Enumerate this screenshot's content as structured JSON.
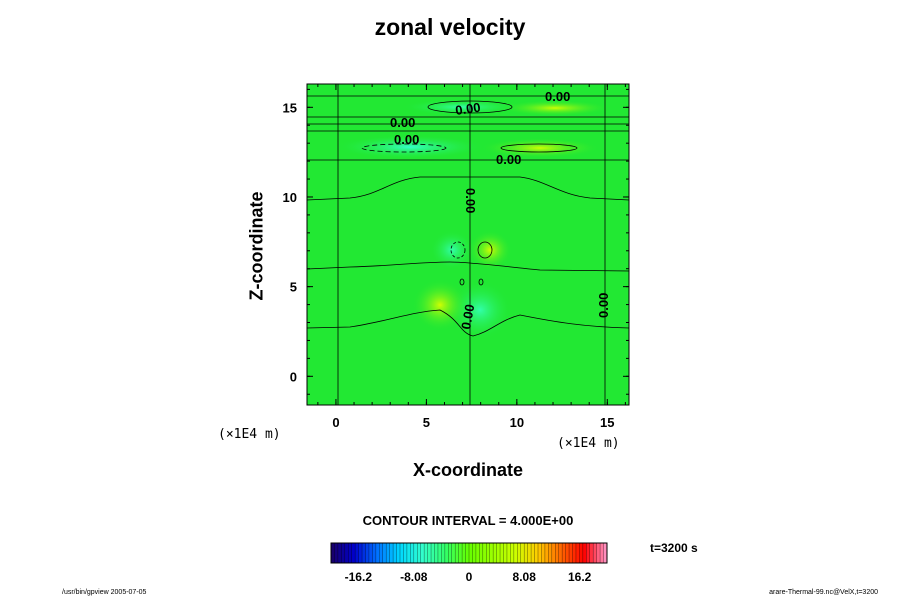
{
  "chart_data": {
    "type": "heatmap",
    "title": "zonal velocity",
    "xlabel": "X-coordinate",
    "ylabel": "Z-coordinate",
    "x_unit_label": "(×1E4 m)",
    "y_unit_label": "(×1E4 m)",
    "xlim": [
      -1.6,
      16.2
    ],
    "ylim": [
      -1.6,
      16.3
    ],
    "x_ticks": [
      0,
      5,
      10,
      15
    ],
    "y_ticks": [
      0,
      5,
      10,
      15
    ],
    "contour_label_text": "0.00",
    "contour_interval_text": "CONTOUR INTERVAL = 4.000E+00",
    "colorbar": {
      "min": -20.2,
      "max": 20.2,
      "tick_values": [
        -16.2,
        -8.08,
        0,
        8.08,
        16.2
      ],
      "tick_labels": [
        "-16.2",
        "-8.08",
        "0",
        "8.08",
        "16.2"
      ],
      "colors": [
        "#1a0066",
        "#0000cc",
        "#0070ff",
        "#00d8ff",
        "#33ffcc",
        "#33ff66",
        "#66ff00",
        "#99ff00",
        "#ccff00",
        "#ffcc00",
        "#ff6600",
        "#ff0000",
        "#ff99cc"
      ]
    },
    "background_color": "#22e833",
    "time_label": "t=3200 s",
    "footer_left": "/usr/bin/gpview 2005-07-05",
    "footer_right": "arare-Thermal-99.nc@VelX,t=3200"
  }
}
